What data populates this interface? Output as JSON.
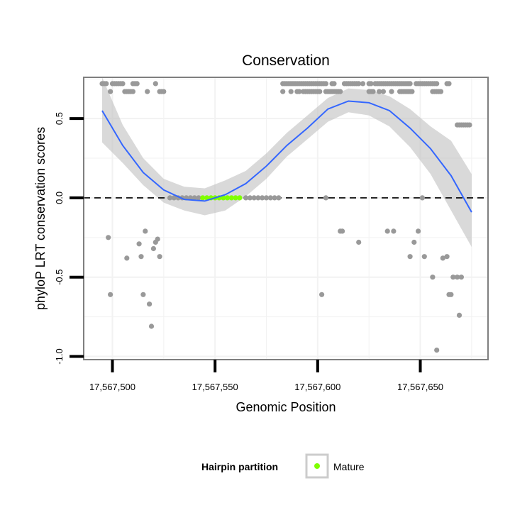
{
  "chart_data": {
    "type": "scatter",
    "title": "Conservation",
    "xlabel": "Genomic Position",
    "ylabel": "phyloP LRT conservation scores",
    "xlim": [
      17567486,
      17567683
    ],
    "ylim": [
      -1.02,
      0.76
    ],
    "x_ticks": [
      17567500,
      17567550,
      17567600,
      17567650
    ],
    "x_tick_labels": [
      "17,567,500",
      "17,567,550",
      "17,567,600",
      "17,567,650"
    ],
    "y_ticks": [
      -1.0,
      -0.5,
      0.0,
      0.5
    ],
    "y_tick_labels": [
      "-1.0",
      "-0.5",
      "0.0",
      "0.5"
    ],
    "reference_line": {
      "y": 0,
      "style": "dashed"
    },
    "colors": {
      "points": "#999999",
      "mature": "#7fff00",
      "smooth_line": "#3366ff",
      "ribbon": "#bfbfbf",
      "panel_border": "#7f7f7f",
      "grid": "#f2f2f2"
    },
    "points": [
      {
        "x": 17567495,
        "y": 0.72
      },
      {
        "x": 17567496,
        "y": 0.72
      },
      {
        "x": 17567497,
        "y": 0.72
      },
      {
        "x": 17567499,
        "y": 0.67
      },
      {
        "x": 17567500,
        "y": 0.72
      },
      {
        "x": 17567501,
        "y": 0.72
      },
      {
        "x": 17567502,
        "y": 0.72
      },
      {
        "x": 17567503,
        "y": 0.72
      },
      {
        "x": 17567504,
        "y": 0.72
      },
      {
        "x": 17567505,
        "y": 0.72
      },
      {
        "x": 17567506,
        "y": 0.67
      },
      {
        "x": 17567507,
        "y": 0.67
      },
      {
        "x": 17567508,
        "y": 0.67
      },
      {
        "x": 17567509,
        "y": 0.67
      },
      {
        "x": 17567510,
        "y": 0.67
      },
      {
        "x": 17567510,
        "y": 0.72
      },
      {
        "x": 17567511,
        "y": 0.72
      },
      {
        "x": 17567512,
        "y": 0.72
      },
      {
        "x": 17567517,
        "y": 0.67
      },
      {
        "x": 17567521,
        "y": 0.72
      },
      {
        "x": 17567523,
        "y": 0.67
      },
      {
        "x": 17567524,
        "y": 0.67
      },
      {
        "x": 17567525,
        "y": 0.67
      },
      {
        "x": 17567498,
        "y": -0.25
      },
      {
        "x": 17567499,
        "y": -0.61
      },
      {
        "x": 17567507,
        "y": -0.38
      },
      {
        "x": 17567513,
        "y": -0.29
      },
      {
        "x": 17567514,
        "y": -0.37
      },
      {
        "x": 17567515,
        "y": -0.61
      },
      {
        "x": 17567516,
        "y": -0.21
      },
      {
        "x": 17567518,
        "y": -0.67
      },
      {
        "x": 17567519,
        "y": -0.81
      },
      {
        "x": 17567520,
        "y": -0.32
      },
      {
        "x": 17567521,
        "y": -0.28
      },
      {
        "x": 17567522,
        "y": -0.26
      },
      {
        "x": 17567523,
        "y": -0.37
      },
      {
        "x": 17567528,
        "y": 0.0
      },
      {
        "x": 17567530,
        "y": 0.0
      },
      {
        "x": 17567532,
        "y": 0.0
      },
      {
        "x": 17567534,
        "y": 0.0
      },
      {
        "x": 17567536,
        "y": 0.0
      },
      {
        "x": 17567538,
        "y": 0.0
      },
      {
        "x": 17567540,
        "y": 0.0
      },
      {
        "x": 17567542,
        "y": 0.0
      },
      {
        "x": 17567565,
        "y": 0.0
      },
      {
        "x": 17567567,
        "y": 0.0
      },
      {
        "x": 17567569,
        "y": 0.0
      },
      {
        "x": 17567571,
        "y": 0.0
      },
      {
        "x": 17567573,
        "y": 0.0
      },
      {
        "x": 17567575,
        "y": 0.0
      },
      {
        "x": 17567577,
        "y": 0.0
      },
      {
        "x": 17567579,
        "y": 0.0
      },
      {
        "x": 17567581,
        "y": 0.0
      },
      {
        "x": 17567583,
        "y": 0.72
      },
      {
        "x": 17567584,
        "y": 0.72
      },
      {
        "x": 17567585,
        "y": 0.72
      },
      {
        "x": 17567586,
        "y": 0.72
      },
      {
        "x": 17567587,
        "y": 0.72
      },
      {
        "x": 17567588,
        "y": 0.72
      },
      {
        "x": 17567589,
        "y": 0.72
      },
      {
        "x": 17567590,
        "y": 0.72
      },
      {
        "x": 17567591,
        "y": 0.72
      },
      {
        "x": 17567592,
        "y": 0.72
      },
      {
        "x": 17567593,
        "y": 0.72
      },
      {
        "x": 17567594,
        "y": 0.72
      },
      {
        "x": 17567595,
        "y": 0.72
      },
      {
        "x": 17567596,
        "y": 0.72
      },
      {
        "x": 17567597,
        "y": 0.72
      },
      {
        "x": 17567598,
        "y": 0.72
      },
      {
        "x": 17567599,
        "y": 0.72
      },
      {
        "x": 17567600,
        "y": 0.72
      },
      {
        "x": 17567601,
        "y": 0.72
      },
      {
        "x": 17567602,
        "y": 0.72
      },
      {
        "x": 17567603,
        "y": 0.72
      },
      {
        "x": 17567604,
        "y": 0.72
      },
      {
        "x": 17567607,
        "y": 0.72
      },
      {
        "x": 17567608,
        "y": 0.72
      },
      {
        "x": 17567613,
        "y": 0.72
      },
      {
        "x": 17567614,
        "y": 0.72
      },
      {
        "x": 17567615,
        "y": 0.72
      },
      {
        "x": 17567616,
        "y": 0.72
      },
      {
        "x": 17567617,
        "y": 0.72
      },
      {
        "x": 17567618,
        "y": 0.72
      },
      {
        "x": 17567619,
        "y": 0.72
      },
      {
        "x": 17567620,
        "y": 0.72
      },
      {
        "x": 17567622,
        "y": 0.72
      },
      {
        "x": 17567625,
        "y": 0.72
      },
      {
        "x": 17567626,
        "y": 0.72
      },
      {
        "x": 17567628,
        "y": 0.72
      },
      {
        "x": 17567629,
        "y": 0.72
      },
      {
        "x": 17567630,
        "y": 0.72
      },
      {
        "x": 17567631,
        "y": 0.72
      },
      {
        "x": 17567632,
        "y": 0.72
      },
      {
        "x": 17567633,
        "y": 0.72
      },
      {
        "x": 17567634,
        "y": 0.72
      },
      {
        "x": 17567635,
        "y": 0.72
      },
      {
        "x": 17567636,
        "y": 0.72
      },
      {
        "x": 17567637,
        "y": 0.72
      },
      {
        "x": 17567638,
        "y": 0.72
      },
      {
        "x": 17567639,
        "y": 0.72
      },
      {
        "x": 17567640,
        "y": 0.72
      },
      {
        "x": 17567641,
        "y": 0.72
      },
      {
        "x": 17567642,
        "y": 0.72
      },
      {
        "x": 17567643,
        "y": 0.72
      },
      {
        "x": 17567644,
        "y": 0.72
      },
      {
        "x": 17567645,
        "y": 0.72
      },
      {
        "x": 17567648,
        "y": 0.72
      },
      {
        "x": 17567649,
        "y": 0.72
      },
      {
        "x": 17567650,
        "y": 0.72
      },
      {
        "x": 17567651,
        "y": 0.72
      },
      {
        "x": 17567652,
        "y": 0.72
      },
      {
        "x": 17567653,
        "y": 0.72
      },
      {
        "x": 17567654,
        "y": 0.72
      },
      {
        "x": 17567655,
        "y": 0.72
      },
      {
        "x": 17567656,
        "y": 0.72
      },
      {
        "x": 17567657,
        "y": 0.72
      },
      {
        "x": 17567658,
        "y": 0.72
      },
      {
        "x": 17567663,
        "y": 0.72
      },
      {
        "x": 17567664,
        "y": 0.72
      },
      {
        "x": 17567583,
        "y": 0.67
      },
      {
        "x": 17567587,
        "y": 0.67
      },
      {
        "x": 17567590,
        "y": 0.67
      },
      {
        "x": 17567591,
        "y": 0.67
      },
      {
        "x": 17567593,
        "y": 0.67
      },
      {
        "x": 17567594,
        "y": 0.67
      },
      {
        "x": 17567595,
        "y": 0.67
      },
      {
        "x": 17567596,
        "y": 0.67
      },
      {
        "x": 17567597,
        "y": 0.67
      },
      {
        "x": 17567598,
        "y": 0.67
      },
      {
        "x": 17567599,
        "y": 0.67
      },
      {
        "x": 17567600,
        "y": 0.67
      },
      {
        "x": 17567601,
        "y": 0.67
      },
      {
        "x": 17567604,
        "y": 0.67
      },
      {
        "x": 17567605,
        "y": 0.67
      },
      {
        "x": 17567606,
        "y": 0.67
      },
      {
        "x": 17567607,
        "y": 0.67
      },
      {
        "x": 17567608,
        "y": 0.67
      },
      {
        "x": 17567609,
        "y": 0.67
      },
      {
        "x": 17567610,
        "y": 0.67
      },
      {
        "x": 17567611,
        "y": 0.67
      },
      {
        "x": 17567625,
        "y": 0.67
      },
      {
        "x": 17567626,
        "y": 0.67
      },
      {
        "x": 17567627,
        "y": 0.67
      },
      {
        "x": 17567630,
        "y": 0.67
      },
      {
        "x": 17567632,
        "y": 0.67
      },
      {
        "x": 17567636,
        "y": 0.67
      },
      {
        "x": 17567640,
        "y": 0.67
      },
      {
        "x": 17567641,
        "y": 0.67
      },
      {
        "x": 17567642,
        "y": 0.67
      },
      {
        "x": 17567643,
        "y": 0.67
      },
      {
        "x": 17567644,
        "y": 0.67
      },
      {
        "x": 17567645,
        "y": 0.67
      },
      {
        "x": 17567646,
        "y": 0.67
      },
      {
        "x": 17567656,
        "y": 0.67
      },
      {
        "x": 17567657,
        "y": 0.67
      },
      {
        "x": 17567658,
        "y": 0.67
      },
      {
        "x": 17567659,
        "y": 0.67
      },
      {
        "x": 17567660,
        "y": 0.67
      },
      {
        "x": 17567668,
        "y": 0.46
      },
      {
        "x": 17567669,
        "y": 0.46
      },
      {
        "x": 17567670,
        "y": 0.46
      },
      {
        "x": 17567671,
        "y": 0.46
      },
      {
        "x": 17567672,
        "y": 0.46
      },
      {
        "x": 17567673,
        "y": 0.46
      },
      {
        "x": 17567674,
        "y": 0.46
      },
      {
        "x": 17567602,
        "y": -0.61
      },
      {
        "x": 17567604,
        "y": 0.0
      },
      {
        "x": 17567611,
        "y": -0.21
      },
      {
        "x": 17567612,
        "y": -0.21
      },
      {
        "x": 17567620,
        "y": -0.28
      },
      {
        "x": 17567634,
        "y": -0.21
      },
      {
        "x": 17567637,
        "y": -0.21
      },
      {
        "x": 17567645,
        "y": -0.37
      },
      {
        "x": 17567647,
        "y": -0.28
      },
      {
        "x": 17567649,
        "y": -0.21
      },
      {
        "x": 17567651,
        "y": 0.0
      },
      {
        "x": 17567652,
        "y": -0.37
      },
      {
        "x": 17567656,
        "y": -0.5
      },
      {
        "x": 17567658,
        "y": -0.96
      },
      {
        "x": 17567661,
        "y": -0.38
      },
      {
        "x": 17567663,
        "y": -0.37
      },
      {
        "x": 17567664,
        "y": -0.61
      },
      {
        "x": 17567665,
        "y": -0.61
      },
      {
        "x": 17567666,
        "y": -0.5
      },
      {
        "x": 17567668,
        "y": -0.5
      },
      {
        "x": 17567669,
        "y": -0.74
      },
      {
        "x": 17567670,
        "y": -0.5
      }
    ],
    "mature_points": [
      {
        "x": 17567544,
        "y": 0.0
      },
      {
        "x": 17567546,
        "y": 0.0
      },
      {
        "x": 17567548,
        "y": 0.0
      },
      {
        "x": 17567550,
        "y": 0.0
      },
      {
        "x": 17567552,
        "y": 0.0
      },
      {
        "x": 17567554,
        "y": 0.0
      },
      {
        "x": 17567556,
        "y": 0.0
      },
      {
        "x": 17567558,
        "y": 0.0
      },
      {
        "x": 17567560,
        "y": 0.0
      },
      {
        "x": 17567562,
        "y": 0.0
      }
    ],
    "smooth": {
      "x": [
        17567495,
        17567505,
        17567515,
        17567525,
        17567535,
        17567545,
        17567555,
        17567565,
        17567575,
        17567585,
        17567595,
        17567605,
        17567615,
        17567625,
        17567635,
        17567645,
        17567655,
        17567665,
        17567675
      ],
      "y": [
        0.55,
        0.33,
        0.16,
        0.05,
        -0.01,
        -0.02,
        0.02,
        0.09,
        0.2,
        0.33,
        0.44,
        0.56,
        0.61,
        0.6,
        0.55,
        0.44,
        0.31,
        0.14,
        -0.09
      ],
      "lower": [
        0.35,
        0.22,
        0.08,
        -0.03,
        -0.08,
        -0.11,
        -0.08,
        0.01,
        0.12,
        0.26,
        0.37,
        0.48,
        0.54,
        0.52,
        0.45,
        0.32,
        0.15,
        -0.08,
        -0.31
      ],
      "upper": [
        0.76,
        0.46,
        0.25,
        0.12,
        0.07,
        0.06,
        0.11,
        0.17,
        0.28,
        0.41,
        0.52,
        0.63,
        0.69,
        0.68,
        0.64,
        0.56,
        0.45,
        0.36,
        0.15
      ]
    },
    "legend": {
      "title": "Hairpin partition",
      "entries": [
        {
          "label": "Mature",
          "color": "#7fff00"
        }
      ]
    }
  }
}
